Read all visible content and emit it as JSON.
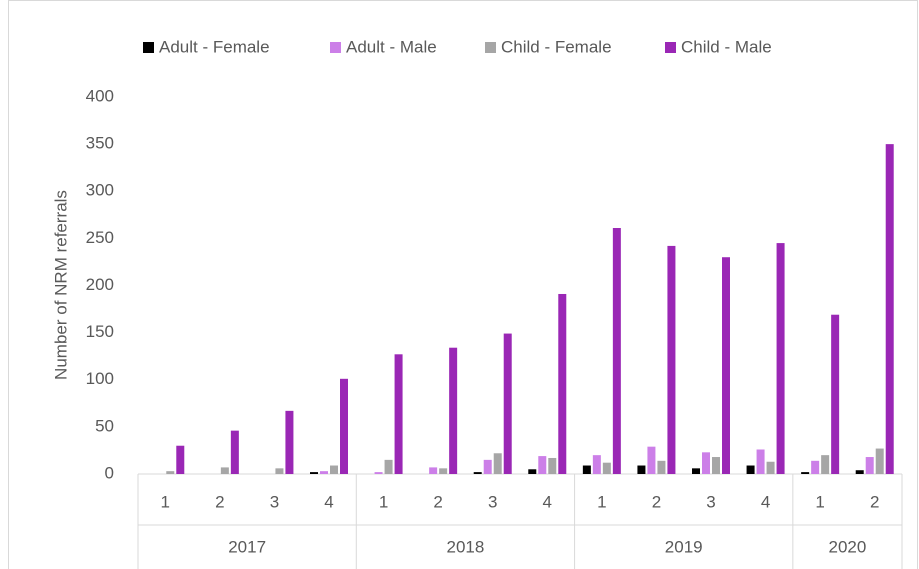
{
  "chart_data": {
    "type": "bar",
    "y_axis_label": "Number of NRM referrals",
    "groups": [
      {
        "name": "2017",
        "categories": [
          "1",
          "2",
          "3",
          "4"
        ]
      },
      {
        "name": "2018",
        "categories": [
          "1",
          "2",
          "3",
          "4"
        ]
      },
      {
        "name": "2019",
        "categories": [
          "1",
          "2",
          "3",
          "4"
        ]
      },
      {
        "name": "2020",
        "categories": [
          "1",
          "2"
        ]
      }
    ],
    "series": [
      {
        "name": "Adult - Female",
        "color": "#000000",
        "values": [
          0,
          0,
          0,
          2,
          0,
          0,
          2,
          5,
          9,
          9,
          6,
          9,
          2,
          4
        ]
      },
      {
        "name": "Adult - Male",
        "color": "#cc7fe8",
        "values": [
          0,
          0,
          0,
          3,
          2,
          7,
          15,
          19,
          20,
          29,
          23,
          26,
          14,
          18
        ]
      },
      {
        "name": "Child - Female",
        "color": "#a6a6a6",
        "values": [
          3,
          7,
          6,
          9,
          15,
          6,
          22,
          17,
          12,
          14,
          18,
          13,
          20,
          27
        ]
      },
      {
        "name": "Child - Male",
        "color": "#9a27b5",
        "values": [
          30,
          46,
          67,
          101,
          127,
          134,
          149,
          191,
          261,
          242,
          230,
          245,
          169,
          350
        ]
      }
    ],
    "ylim": [
      0,
      400
    ],
    "yticks": [
      0,
      50,
      100,
      150,
      200,
      250,
      300,
      350,
      400
    ],
    "grid": false,
    "legend": "top"
  }
}
